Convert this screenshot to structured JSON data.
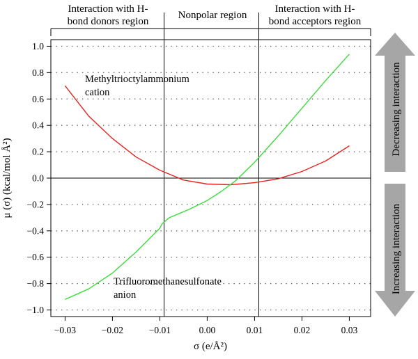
{
  "chart_data": {
    "type": "line",
    "xlabel": "σ (e/Å²)",
    "ylabel": "μ (σ) (kcal/mol Å²)",
    "xlim": [
      -0.033,
      0.0345
    ],
    "ylim": [
      -1.05,
      1.05
    ],
    "xticks": [
      -0.03,
      -0.02,
      -0.01,
      0.0,
      0.01,
      0.02,
      0.03
    ],
    "xtick_labels": [
      "−0.03",
      "−0.02",
      "−0.01",
      "0.00",
      "0.01",
      "0.02",
      "0.03"
    ],
    "yticks": [
      -1.0,
      -0.8,
      -0.6,
      -0.4,
      -0.2,
      0.0,
      0.2,
      0.4,
      0.6,
      0.8,
      1.0
    ],
    "ytick_labels": [
      "−1.0",
      "−0.8",
      "−0.6",
      "−0.4",
      "−0.2",
      "0.0",
      "0.2",
      "0.4",
      "0.6",
      "0.8",
      "1.0"
    ],
    "grid": "horizontal dotted",
    "hline": 0.0,
    "vlines": [
      -0.0091,
      0.0109
    ],
    "series": [
      {
        "name": "Methyltrioctylammonium cation",
        "color": "#e8231f",
        "x": [
          -0.03,
          -0.025,
          -0.02,
          -0.015,
          -0.01,
          -0.005,
          0.0,
          0.005,
          0.01,
          0.015,
          0.02,
          0.025,
          0.03
        ],
        "y": [
          0.7,
          0.47,
          0.3,
          0.16,
          0.06,
          -0.015,
          -0.045,
          -0.05,
          -0.035,
          -0.005,
          0.05,
          0.13,
          0.245
        ]
      },
      {
        "name": "Trifluoromethanesulfonate anion",
        "color": "#3cdc3c",
        "x": [
          -0.03,
          -0.025,
          -0.02,
          -0.015,
          -0.01,
          -0.0095,
          -0.008,
          -0.006,
          -0.004,
          -0.002,
          0.0,
          0.003,
          0.006,
          0.01,
          0.015,
          0.02,
          0.025,
          0.03
        ],
        "y": [
          -0.92,
          -0.84,
          -0.72,
          -0.56,
          -0.38,
          -0.345,
          -0.3,
          -0.27,
          -0.24,
          -0.205,
          -0.17,
          -0.1,
          -0.02,
          0.12,
          0.32,
          0.53,
          0.74,
          0.94
        ]
      }
    ],
    "annotations": [
      {
        "line1": "Methyltrioctylammonium",
        "line2": "cation"
      },
      {
        "line1": "Trifluoromethanesulfonate",
        "line2": "anion"
      }
    ],
    "regions": [
      {
        "line1": "Interaction with H-",
        "line2": "bond donors region"
      },
      {
        "line1": "Nonpolar region",
        "line2": ""
      },
      {
        "line1": "Interaction with H-",
        "line2": "bond acceptors region"
      }
    ],
    "side_arrows": [
      {
        "label": "Decreasing interaction",
        "direction": "up"
      },
      {
        "label": "Increasing interaction",
        "direction": "down"
      }
    ]
  }
}
